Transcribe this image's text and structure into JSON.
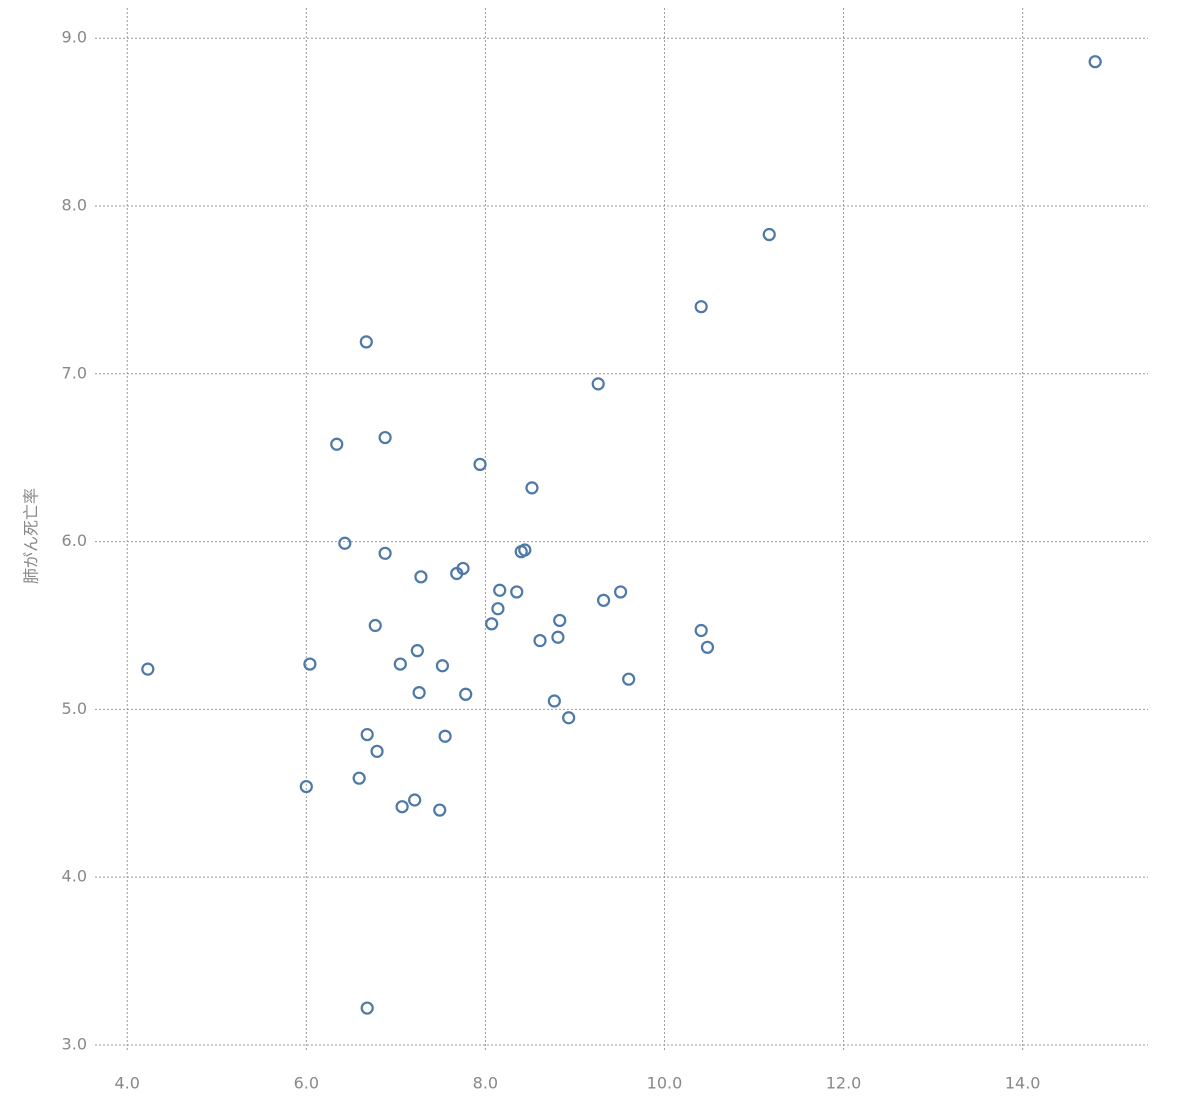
{
  "chart_data": {
    "type": "scatter",
    "y_label": "肺がん死亡率",
    "color": "#4e79a7",
    "grid": true,
    "xlim": [
      3.64,
      15.4
    ],
    "ylim": [
      2.97,
      9.18
    ],
    "xticks": [
      {
        "value": 4,
        "label": "4.0"
      },
      {
        "value": 6,
        "label": "6.0"
      },
      {
        "value": 8,
        "label": "8.0"
      },
      {
        "value": 10,
        "label": "10.0"
      },
      {
        "value": 12,
        "label": "12.0"
      },
      {
        "value": 14,
        "label": "14.0"
      }
    ],
    "yticks": [
      {
        "value": 3,
        "label": "3.0"
      },
      {
        "value": 4,
        "label": "4.0"
      },
      {
        "value": 5,
        "label": "5.0"
      },
      {
        "value": 6,
        "label": "6.0"
      },
      {
        "value": 7,
        "label": "7.0"
      },
      {
        "value": 8,
        "label": "8.0"
      },
      {
        "value": 9,
        "label": "9.0"
      }
    ],
    "x": [
      14.81,
      11.17,
      10.41,
      6.67,
      9.26,
      6.34,
      6.88,
      7.94,
      8.52,
      6.43,
      6.88,
      8.4,
      8.44,
      7.75,
      7.68,
      7.28,
      8.16,
      8.35,
      9.51,
      9.32,
      8.14,
      8.83,
      6.77,
      8.07,
      10.41,
      8.81,
      8.61,
      10.48,
      7.24,
      4.23,
      6.04,
      7.05,
      7.52,
      9.6,
      7.26,
      7.78,
      8.77,
      8.93,
      6.68,
      7.55,
      6.79,
      6.59,
      6.0,
      7.21,
      7.07,
      7.49,
      6.68
    ],
    "values": [
      8.86,
      7.83,
      7.4,
      7.19,
      6.94,
      6.58,
      6.62,
      6.46,
      6.32,
      5.99,
      5.93,
      5.94,
      5.95,
      5.84,
      5.81,
      5.79,
      5.71,
      5.7,
      5.7,
      5.65,
      5.6,
      5.53,
      5.5,
      5.51,
      5.47,
      5.43,
      5.41,
      5.37,
      5.35,
      5.24,
      5.27,
      5.27,
      5.26,
      5.18,
      5.1,
      5.09,
      5.05,
      4.95,
      4.85,
      4.84,
      4.75,
      4.59,
      4.54,
      4.46,
      4.42,
      4.4,
      3.22
    ]
  }
}
